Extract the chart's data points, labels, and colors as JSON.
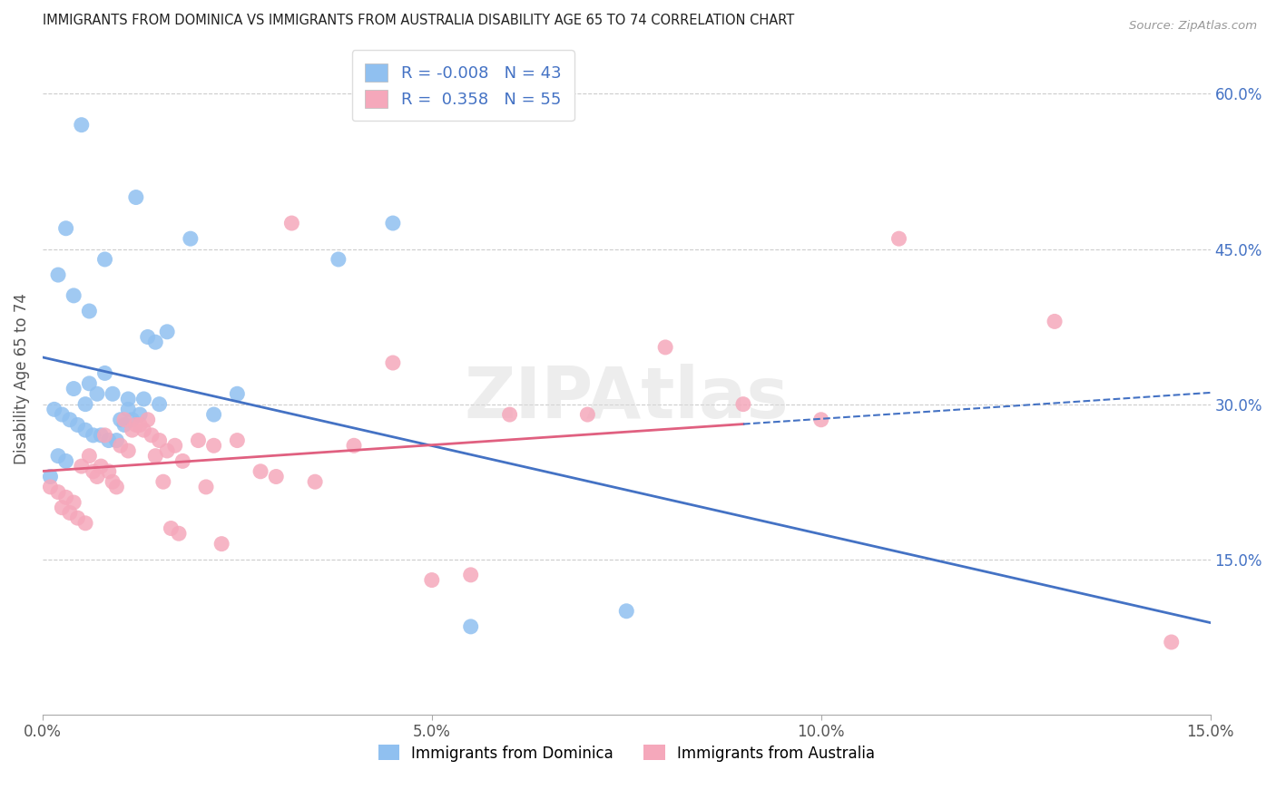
{
  "title": "IMMIGRANTS FROM DOMINICA VS IMMIGRANTS FROM AUSTRALIA DISABILITY AGE 65 TO 74 CORRELATION CHART",
  "source_text": "Source: ZipAtlas.com",
  "ylabel": "Disability Age 65 to 74",
  "xlabel_ticks": [
    "0.0%",
    "5.0%",
    "10.0%",
    "15.0%"
  ],
  "xlabel_vals": [
    0.0,
    5.0,
    10.0,
    15.0
  ],
  "ylabel_right_ticks": [
    "15.0%",
    "30.0%",
    "45.0%",
    "60.0%"
  ],
  "ylabel_right_vals": [
    15.0,
    30.0,
    45.0,
    60.0
  ],
  "xlim": [
    0.0,
    15.0
  ],
  "ylim": [
    0.0,
    65.0
  ],
  "dominica_R": "-0.008",
  "dominica_N": "43",
  "australia_R": "0.358",
  "australia_N": "55",
  "blue_scatter_color": "#90C0F0",
  "pink_scatter_color": "#F5A8BB",
  "blue_line_color": "#4472C4",
  "pink_line_color": "#E06080",
  "legend_label_dominica": "Immigrants from Dominica",
  "legend_label_australia": "Immigrants from Australia",
  "dominica_x": [
    0.5,
    1.2,
    0.3,
    0.8,
    0.2,
    0.4,
    0.6,
    0.9,
    1.1,
    1.5,
    2.5,
    4.5,
    0.15,
    0.25,
    0.35,
    0.45,
    0.55,
    0.65,
    0.75,
    0.85,
    0.95,
    1.05,
    1.15,
    1.25,
    1.35,
    1.45,
    0.2,
    0.3,
    1.0,
    1.1,
    1.6,
    2.2,
    3.8,
    5.5,
    7.5,
    0.1,
    0.4,
    0.6,
    0.7,
    0.8,
    1.3,
    1.9,
    0.55
  ],
  "dominica_y": [
    57.0,
    50.0,
    47.0,
    44.0,
    42.5,
    40.5,
    39.0,
    31.0,
    30.5,
    30.0,
    31.0,
    47.5,
    29.5,
    29.0,
    28.5,
    28.0,
    27.5,
    27.0,
    27.0,
    26.5,
    26.5,
    28.0,
    28.5,
    29.0,
    36.5,
    36.0,
    25.0,
    24.5,
    28.5,
    29.5,
    37.0,
    29.0,
    44.0,
    8.5,
    10.0,
    23.0,
    31.5,
    32.0,
    31.0,
    33.0,
    30.5,
    46.0,
    30.0
  ],
  "australia_x": [
    0.1,
    0.2,
    0.3,
    0.4,
    0.5,
    0.6,
    0.7,
    0.8,
    0.9,
    1.0,
    1.1,
    1.2,
    1.3,
    1.4,
    1.5,
    1.6,
    1.7,
    1.8,
    2.0,
    2.2,
    2.5,
    2.8,
    3.0,
    3.5,
    4.0,
    4.5,
    5.0,
    5.5,
    6.0,
    7.0,
    8.0,
    9.0,
    10.0,
    11.0,
    13.0,
    0.25,
    0.35,
    0.45,
    0.55,
    0.65,
    0.75,
    0.85,
    0.95,
    1.05,
    1.15,
    1.25,
    1.35,
    1.45,
    1.55,
    1.65,
    1.75,
    2.1,
    2.3,
    14.5,
    3.2
  ],
  "australia_y": [
    22.0,
    21.5,
    21.0,
    20.5,
    24.0,
    25.0,
    23.0,
    27.0,
    22.5,
    26.0,
    25.5,
    28.0,
    27.5,
    27.0,
    26.5,
    25.5,
    26.0,
    24.5,
    26.5,
    26.0,
    26.5,
    23.5,
    23.0,
    22.5,
    26.0,
    34.0,
    13.0,
    13.5,
    29.0,
    29.0,
    35.5,
    30.0,
    28.5,
    46.0,
    38.0,
    20.0,
    19.5,
    19.0,
    18.5,
    23.5,
    24.0,
    23.5,
    22.0,
    28.5,
    27.5,
    28.0,
    28.5,
    25.0,
    22.5,
    18.0,
    17.5,
    22.0,
    16.5,
    7.0,
    47.5
  ]
}
